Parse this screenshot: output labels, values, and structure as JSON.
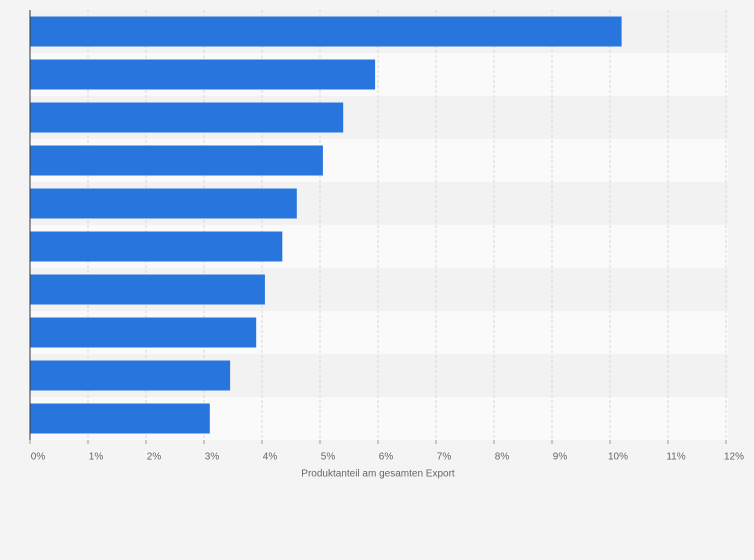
{
  "chart_data": {
    "type": "bar",
    "orientation": "horizontal",
    "x_label": "Produktanteil am gesamten Export",
    "categories": [
      null,
      null,
      null,
      null,
      null,
      null,
      null,
      null,
      null,
      null
    ],
    "values": [
      10.2,
      5.95,
      5.4,
      5.05,
      4.6,
      4.35,
      4.05,
      3.9,
      3.45,
      3.1
    ],
    "color": "#2876dd",
    "xlim": [
      0,
      12
    ],
    "xticks": [
      {
        "value": 0,
        "label": "0%"
      },
      {
        "value": 1,
        "label": "1%"
      },
      {
        "value": 2,
        "label": "2%"
      },
      {
        "value": 3,
        "label": "3%"
      },
      {
        "value": 4,
        "label": "4%"
      },
      {
        "value": 5,
        "label": "5%"
      },
      {
        "value": 6,
        "label": "6%"
      },
      {
        "value": 7,
        "label": "7%"
      },
      {
        "value": 8,
        "label": "8%"
      },
      {
        "value": 9,
        "label": "9%"
      },
      {
        "value": 10,
        "label": "10%"
      },
      {
        "value": 11,
        "label": "11%"
      },
      {
        "value": 12,
        "label": "12%"
      }
    ],
    "grid": true
  }
}
